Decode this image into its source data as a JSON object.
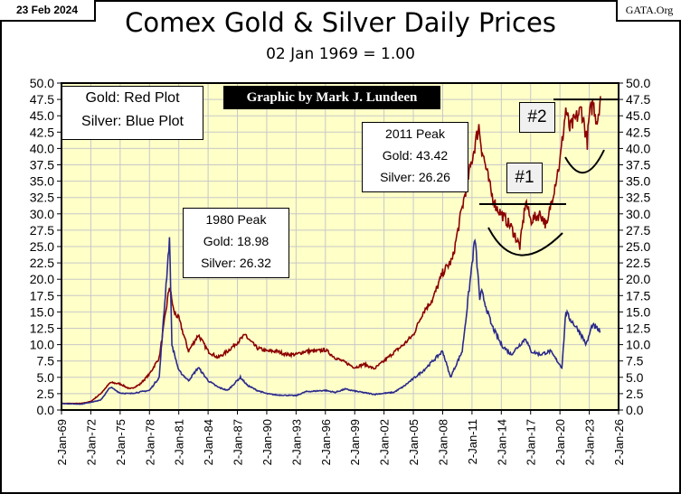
{
  "chart_data": {
    "type": "line",
    "title": "Comex Gold & Silver Daily Prices",
    "subtitle": "02 Jan 1969 = 1.00",
    "date_label": "23 Feb 2024",
    "source_label": "GATA.Org",
    "credit": "Graphic by Mark J. Lundeen",
    "legend": [
      "Gold: Red Plot",
      "Silver: Blue Plot"
    ],
    "ylim": [
      0,
      50
    ],
    "yticks": [
      "0.0",
      "2.5",
      "5.0",
      "7.5",
      "10.0",
      "12.5",
      "15.0",
      "17.5",
      "20.0",
      "22.5",
      "25.0",
      "27.5",
      "30.0",
      "32.5",
      "35.0",
      "37.5",
      "40.0",
      "42.5",
      "45.0",
      "47.5",
      "50.0"
    ],
    "xlim": [
      1969,
      2026
    ],
    "xticks": [
      "2-Jan-69",
      "2-Jan-72",
      "2-Jan-75",
      "2-Jan-78",
      "2-Jan-81",
      "2-Jan-84",
      "2-Jan-87",
      "2-Jan-90",
      "2-Jan-93",
      "2-Jan-96",
      "2-Jan-99",
      "2-Jan-02",
      "2-Jan-05",
      "2-Jan-08",
      "2-Jan-11",
      "2-Jan-14",
      "2-Jan-17",
      "2-Jan-20",
      "2-Jan-23",
      "2-Jan-26"
    ],
    "grid": true,
    "background": "#ffffc8",
    "series": [
      {
        "name": "Gold",
        "color": "#8b0000",
        "x": [
          1969,
          1971,
          1972,
          1973,
          1974,
          1975,
          1976,
          1977,
          1978,
          1979,
          1980.05,
          1980.5,
          1981,
          1982,
          1983,
          1984,
          1985,
          1986,
          1987.9,
          1988,
          1989,
          1990,
          1991,
          1992,
          1993,
          1994,
          1995,
          1996,
          1997,
          1998,
          1999,
          2000,
          2001,
          2002,
          2003,
          2004,
          2005,
          2006,
          2007,
          2008,
          2009,
          2010,
          2011.7,
          2012,
          2013,
          2013.5,
          2014,
          2015,
          2015.9,
          2016.5,
          2017,
          2018,
          2018.7,
          2019,
          2019.7,
          2020,
          2020.6,
          2021,
          2022.2,
          2022.8,
          2023,
          2023.4,
          2023.8,
          2024.15
        ],
        "y": [
          1,
          1,
          1.3,
          2.5,
          4.2,
          4,
          3.2,
          3.9,
          5.5,
          8,
          18.98,
          15,
          14,
          9,
          11.5,
          9,
          8,
          9,
          11.6,
          11,
          9.5,
          9,
          9,
          8.5,
          8.5,
          9,
          9,
          9.2,
          8,
          7.3,
          6.5,
          7,
          6.3,
          7.5,
          8.8,
          10,
          11.5,
          15,
          17,
          21,
          23,
          31,
          43.42,
          40,
          33,
          31,
          30,
          28,
          25,
          32,
          29,
          30,
          28,
          31,
          36,
          38,
          46,
          43,
          46,
          41,
          45,
          47,
          44,
          48
        ]
      },
      {
        "name": "Silver",
        "color": "#2a2a8c",
        "x": [
          1969,
          1971,
          1973,
          1974,
          1975,
          1976,
          1978,
          1979,
          1980.05,
          1980.3,
          1981,
          1982,
          1983,
          1984,
          1985,
          1986,
          1987.3,
          1988,
          1989,
          1990,
          1991,
          1993,
          1994,
          1996,
          1997,
          1998,
          1999,
          2001,
          2003,
          2004,
          2006,
          2007,
          2008,
          2008.8,
          2010,
          2011.3,
          2011.8,
          2012,
          2013,
          2014,
          2015,
          2016.5,
          2017,
          2018,
          2019,
          2020.2,
          2020.6,
          2021,
          2022,
          2022.7,
          2023.3,
          2024.15
        ],
        "y": [
          1,
          0.9,
          1.5,
          3.5,
          2.6,
          2.5,
          3,
          5,
          26.32,
          10,
          6,
          4.5,
          6.5,
          4.5,
          3.5,
          3,
          5,
          3.8,
          3,
          2.5,
          2.3,
          2.2,
          2.8,
          3,
          2.7,
          3.2,
          2.9,
          2.4,
          2.7,
          3.6,
          6,
          7.5,
          9,
          5,
          9,
          26.26,
          17,
          18,
          13,
          10,
          8.5,
          11,
          9,
          8.5,
          9,
          6.5,
          15,
          14,
          12,
          10,
          13,
          12
        ]
      }
    ],
    "annotations": {
      "peak_1980": {
        "title": "1980 Peak",
        "gold": "Gold:  18.98",
        "silver": "Silver: 26.32"
      },
      "peak_2011": {
        "title": "2011 Peak",
        "gold": "Gold:  43.42",
        "silver": "Silver: 26.26"
      },
      "marker_1": "#1",
      "marker_2": "#2"
    }
  }
}
